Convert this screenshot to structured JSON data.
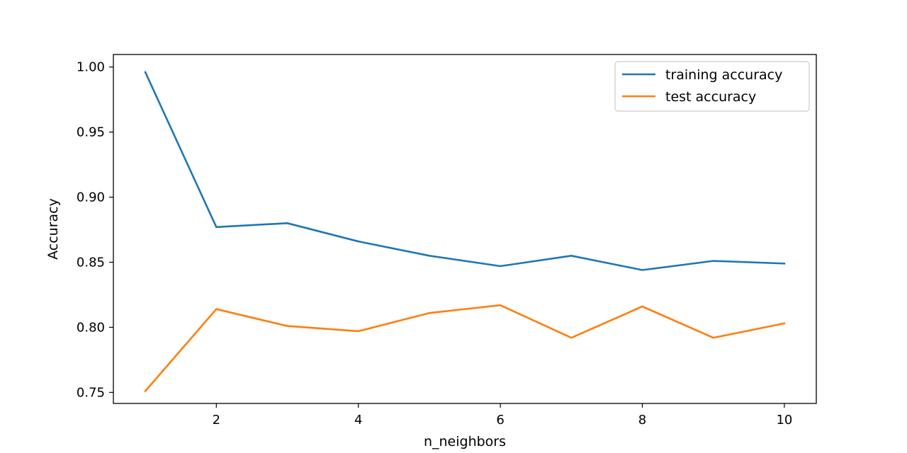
{
  "chart_data": {
    "type": "line",
    "title": "",
    "xlabel": "n_neighbors",
    "ylabel": "Accuracy",
    "xlim": [
      0.55,
      10.45
    ],
    "ylim": [
      0.7415,
      1.0096
    ],
    "x_ticks": [
      2,
      4,
      6,
      8,
      10
    ],
    "x_tick_labels": [
      "2",
      "4",
      "6",
      "8",
      "10"
    ],
    "y_ticks": [
      0.75,
      0.8,
      0.85,
      0.9,
      0.95,
      1.0
    ],
    "y_tick_labels": [
      "0.75",
      "0.80",
      "0.85",
      "0.90",
      "0.95",
      "1.00"
    ],
    "grid": false,
    "legend_position": "top-right",
    "x": [
      1,
      2,
      3,
      4,
      5,
      6,
      7,
      8,
      9,
      10
    ],
    "series": [
      {
        "name": "training accuracy",
        "color": "#1f77b4",
        "values": [
          0.996,
          0.877,
          0.88,
          0.866,
          0.855,
          0.847,
          0.855,
          0.844,
          0.851,
          0.849
        ]
      },
      {
        "name": "test accuracy",
        "color": "#ff7f0e",
        "values": [
          0.751,
          0.814,
          0.801,
          0.797,
          0.811,
          0.817,
          0.792,
          0.816,
          0.792,
          0.803
        ]
      }
    ]
  }
}
